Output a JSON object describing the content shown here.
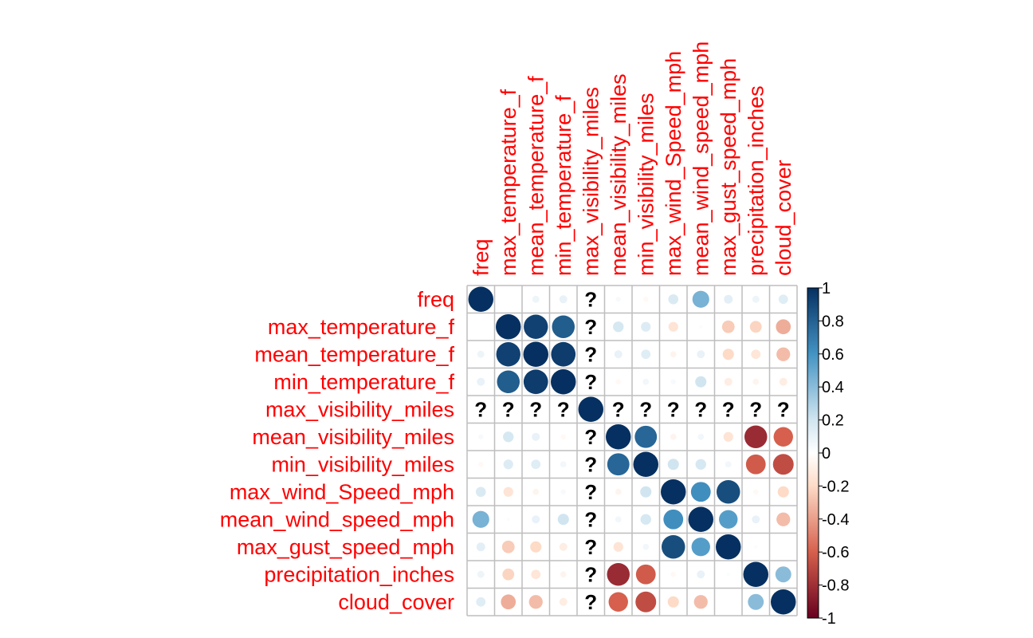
{
  "chart_data": {
    "type": "heatmap",
    "method": "circle",
    "variables": [
      "freq",
      "max_temperature_f",
      "mean_temperature_f",
      "min_temperature_f",
      "max_visibility_miles",
      "mean_visibility_miles",
      "min_visibility_miles",
      "max_wind_Speed_mph",
      "mean_wind_speed_mph",
      "max_gust_speed_mph",
      "precipitation_inches",
      "cloud_cover"
    ],
    "missing_symbol": "?",
    "matrix": [
      [
        1,
        0.0,
        0.08,
        0.1,
        null,
        0.04,
        -0.04,
        0.16,
        0.45,
        0.12,
        0.08,
        0.14
      ],
      [
        0.0,
        1,
        0.93,
        0.82,
        null,
        0.18,
        0.15,
        -0.15,
        0.02,
        -0.25,
        -0.22,
        -0.35
      ],
      [
        0.08,
        0.93,
        1,
        0.95,
        null,
        0.1,
        0.14,
        -0.06,
        0.1,
        -0.2,
        -0.14,
        -0.3
      ],
      [
        0.1,
        0.82,
        0.95,
        1,
        null,
        -0.04,
        0.06,
        0.04,
        0.2,
        -0.1,
        -0.06,
        -0.1
      ],
      [
        null,
        null,
        null,
        null,
        1,
        null,
        null,
        null,
        null,
        null,
        null,
        null
      ],
      [
        0.04,
        0.18,
        0.1,
        -0.04,
        null,
        1,
        0.78,
        -0.06,
        0.06,
        -0.15,
        -0.82,
        -0.6
      ],
      [
        -0.04,
        0.15,
        0.14,
        0.06,
        null,
        0.78,
        1,
        0.2,
        0.18,
        0.06,
        -0.62,
        -0.68
      ],
      [
        0.16,
        -0.15,
        -0.06,
        0.04,
        null,
        -0.06,
        0.2,
        1,
        0.62,
        0.88,
        -0.04,
        -0.2
      ],
      [
        0.45,
        0.02,
        0.1,
        0.2,
        null,
        0.06,
        0.18,
        0.62,
        1,
        0.55,
        0.1,
        -0.3
      ],
      [
        0.12,
        -0.25,
        -0.2,
        -0.1,
        null,
        -0.15,
        0.06,
        0.88,
        0.55,
        1,
        0.02,
        0.0
      ],
      [
        0.08,
        -0.22,
        -0.14,
        -0.06,
        null,
        -0.82,
        -0.62,
        -0.04,
        0.1,
        0.02,
        1,
        0.4
      ],
      [
        0.14,
        -0.35,
        -0.3,
        -0.1,
        null,
        -0.6,
        -0.68,
        -0.2,
        -0.3,
        0.0,
        0.4,
        1
      ]
    ],
    "colorbar": {
      "range": [
        -1,
        1
      ],
      "ticks": [
        "1",
        "0.8",
        "0.6",
        "0.4",
        "0.2",
        "0",
        "-0.2",
        "-0.4",
        "-0.6",
        "-0.8",
        "-1"
      ],
      "ticks_values": [
        1,
        0.8,
        0.6,
        0.4,
        0.2,
        0,
        -0.2,
        -0.4,
        -0.6,
        -0.8,
        -1
      ],
      "colors": {
        "neg_strong": "#67001F",
        "neg_mid": "#D6604D",
        "neg_weak": "#FDDBC7",
        "neutral": "#FFFFFF",
        "pos_weak": "#D1E5F0",
        "pos_mid": "#4393C3",
        "pos_strong": "#053061"
      }
    },
    "label_color": "#FF0000",
    "grid_color": "#BEBEBE",
    "legend_position": "right"
  }
}
